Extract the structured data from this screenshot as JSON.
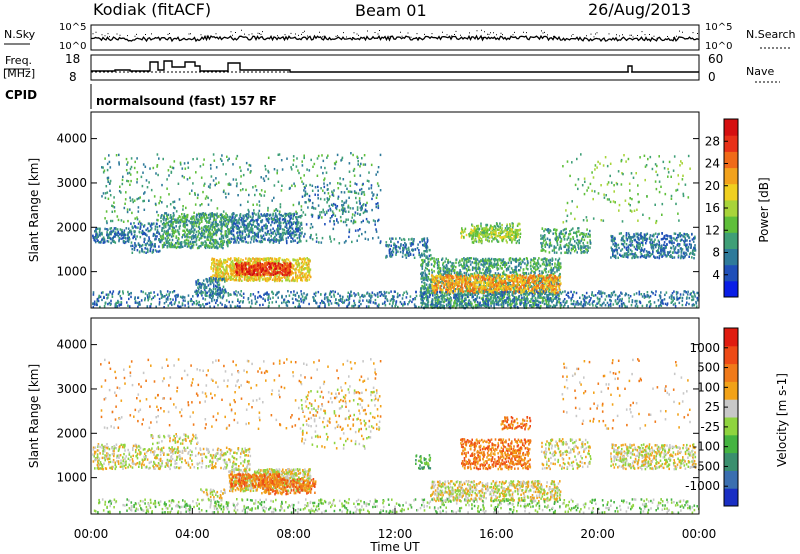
{
  "header": {
    "radar": "Kodiak (fitACF)",
    "beam": "Beam 01",
    "date": "26/Aug/2013"
  },
  "status_panels": {
    "nsky_label": "N.Sky",
    "nsearch_label": "N.Search",
    "noise_ticks": [
      "10^5",
      "10^0"
    ],
    "freq_label_top": "Freq.",
    "freq_label_bottom": "[MHz]",
    "freq_ticks": [
      "18",
      "8"
    ],
    "nave_label": "Nave",
    "nave_ticks": [
      "60",
      "0"
    ],
    "cpid_label": "CPID",
    "cpid_text": "normalsound (fast) 157 RF"
  },
  "chart_data": [
    {
      "type": "heatmap",
      "title": "",
      "ylabel": "Slant Range [km]",
      "yticks": [
        "1000",
        "2000",
        "3000",
        "4000"
      ],
      "ylim": [
        180,
        4600
      ],
      "colorbar": {
        "label": "Power [dB]",
        "ticks": [
          "4",
          "8",
          "12",
          "16",
          "20",
          "24",
          "28"
        ],
        "colors": [
          "#0a1ee6",
          "#1f4fb8",
          "#2e7a9a",
          "#3f9f77",
          "#5fbf3a",
          "#a8d43a",
          "#f0d020",
          "#f2a21c",
          "#f06a18",
          "#e83018",
          "#d50f10"
        ]
      }
    },
    {
      "type": "heatmap",
      "title": "",
      "ylabel": "Slant Range [km]",
      "yticks": [
        "1000",
        "2000",
        "3000",
        "4000"
      ],
      "ylim": [
        180,
        4600
      ],
      "xlabel": "Time UT",
      "xticks": [
        "00:00",
        "04:00",
        "08:00",
        "12:00",
        "16:00",
        "20:00",
        "00:00"
      ],
      "colorbar": {
        "label": "Velocity [m s-1]",
        "ticks": [
          "1000",
          "500",
          "100",
          "25",
          "-25",
          "-100",
          "-500",
          "-1000"
        ],
        "colors": [
          "#1a2fc4",
          "#3b6fb0",
          "#3a8f6e",
          "#45b441",
          "#8fd43f",
          "#c8c8c8",
          "#f2a218",
          "#f07a1a",
          "#ee4a16",
          "#e01c10"
        ]
      }
    }
  ]
}
